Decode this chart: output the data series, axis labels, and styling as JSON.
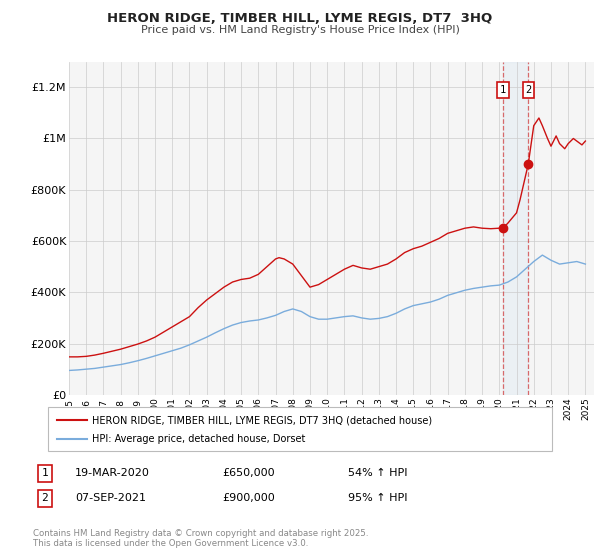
{
  "title": "HERON RIDGE, TIMBER HILL, LYME REGIS, DT7  3HQ",
  "subtitle": "Price paid vs. HM Land Registry's House Price Index (HPI)",
  "legend_label_red": "HERON RIDGE, TIMBER HILL, LYME REGIS, DT7 3HQ (detached house)",
  "legend_label_blue": "HPI: Average price, detached house, Dorset",
  "event1_label": "1",
  "event2_label": "2",
  "event1_date": "19-MAR-2020",
  "event2_date": "07-SEP-2021",
  "event1_price": "£650,000",
  "event2_price": "£900,000",
  "event1_hpi": "54% ↑ HPI",
  "event2_hpi": "95% ↑ HPI",
  "event1_x": 2020.21,
  "event2_x": 2021.68,
  "event1_y": 650000,
  "event2_y": 900000,
  "ylim": [
    0,
    1300000
  ],
  "xlim": [
    1995,
    2025.5
  ],
  "yticks": [
    0,
    200000,
    400000,
    600000,
    800000,
    1000000,
    1200000
  ],
  "ytick_labels": [
    "£0",
    "£200K",
    "£400K",
    "£600K",
    "£800K",
    "£1M",
    "£1.2M"
  ],
  "background_color": "#f5f5f5",
  "grid_color": "#cccccc",
  "red_color": "#cc1111",
  "blue_color": "#7aacdc",
  "shade_color": "#ddaaaa",
  "footer_text": "Contains HM Land Registry data © Crown copyright and database right 2025.\nThis data is licensed under the Open Government Licence v3.0.",
  "red_line_years": [
    1995,
    1995.5,
    1996,
    1996.5,
    1997,
    1997.5,
    1998,
    1998.5,
    1999,
    1999.5,
    2000,
    2000.5,
    2001,
    2001.5,
    2002,
    2002.5,
    2003,
    2003.5,
    2004,
    2004.5,
    2005,
    2005.5,
    2006,
    2006.5,
    2007,
    2007.2,
    2007.5,
    2008,
    2008.5,
    2009,
    2009.5,
    2010,
    2010.5,
    2011,
    2011.5,
    2012,
    2012.5,
    2013,
    2013.5,
    2014,
    2014.5,
    2015,
    2015.5,
    2016,
    2016.5,
    2017,
    2017.5,
    2018,
    2018.5,
    2019,
    2019.5,
    2020.0,
    2020.21,
    2020.5,
    2021,
    2021.2,
    2021.68,
    2022,
    2022.3,
    2022.5,
    2022.8,
    2023,
    2023.3,
    2023.5,
    2023.8,
    2024,
    2024.3,
    2024.5,
    2024.8,
    2025
  ],
  "red_line_values": [
    148000,
    148000,
    150000,
    155000,
    162000,
    170000,
    178000,
    188000,
    198000,
    210000,
    225000,
    245000,
    265000,
    285000,
    305000,
    340000,
    370000,
    395000,
    420000,
    440000,
    450000,
    455000,
    470000,
    500000,
    530000,
    535000,
    530000,
    510000,
    465000,
    420000,
    430000,
    450000,
    470000,
    490000,
    505000,
    495000,
    490000,
    500000,
    510000,
    530000,
    555000,
    570000,
    580000,
    595000,
    610000,
    630000,
    640000,
    650000,
    655000,
    650000,
    648000,
    650000,
    650000,
    670000,
    710000,
    760000,
    900000,
    1050000,
    1080000,
    1050000,
    1000000,
    970000,
    1010000,
    980000,
    960000,
    980000,
    1000000,
    990000,
    975000,
    990000
  ],
  "blue_line_years": [
    1995,
    1995.5,
    1996,
    1996.5,
    1997,
    1997.5,
    1998,
    1998.5,
    1999,
    1999.5,
    2000,
    2000.5,
    2001,
    2001.5,
    2002,
    2002.5,
    2003,
    2003.5,
    2004,
    2004.5,
    2005,
    2005.5,
    2006,
    2006.5,
    2007,
    2007.5,
    2008,
    2008.5,
    2009,
    2009.5,
    2010,
    2010.5,
    2011,
    2011.5,
    2012,
    2012.5,
    2013,
    2013.5,
    2014,
    2014.5,
    2015,
    2015.5,
    2016,
    2016.5,
    2017,
    2017.5,
    2018,
    2018.5,
    2019,
    2019.5,
    2020,
    2020.5,
    2021,
    2021.5,
    2022,
    2022.5,
    2023,
    2023.5,
    2024,
    2024.5,
    2025
  ],
  "blue_line_values": [
    95000,
    97000,
    100000,
    103000,
    108000,
    113000,
    118000,
    125000,
    133000,
    142000,
    152000,
    162000,
    172000,
    182000,
    195000,
    210000,
    225000,
    242000,
    258000,
    272000,
    282000,
    288000,
    292000,
    300000,
    310000,
    325000,
    335000,
    325000,
    305000,
    295000,
    295000,
    300000,
    305000,
    308000,
    300000,
    295000,
    298000,
    305000,
    318000,
    335000,
    348000,
    355000,
    362000,
    373000,
    388000,
    398000,
    408000,
    415000,
    420000,
    425000,
    428000,
    440000,
    460000,
    490000,
    520000,
    545000,
    525000,
    510000,
    515000,
    520000,
    510000
  ]
}
